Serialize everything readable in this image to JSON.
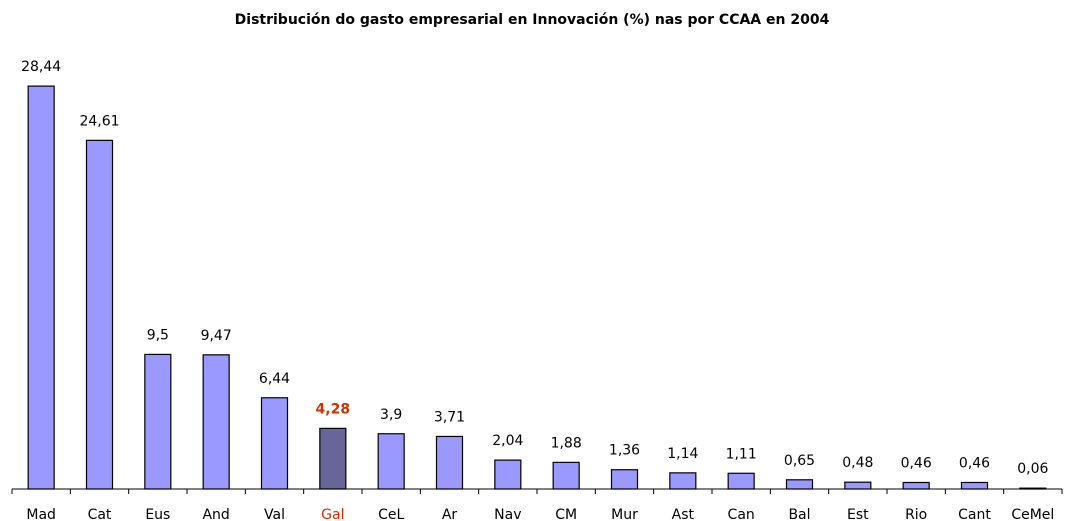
{
  "chart_data": {
    "type": "bar",
    "title": "Distribución do gasto empresarial en Innovación (%) nas por CCAA en 2004",
    "categories": [
      "Mad",
      "Cat",
      "Eus",
      "And",
      "Val",
      "Gal",
      "CeL",
      "Ar",
      "Nav",
      "CM",
      "Mur",
      "Ast",
      "Can",
      "Bal",
      "Est",
      "Rio",
      "Cant",
      "CeMel"
    ],
    "values": [
      28.44,
      24.61,
      9.5,
      9.47,
      6.44,
      4.28,
      3.9,
      3.71,
      2.04,
      1.88,
      1.36,
      1.14,
      1.11,
      0.65,
      0.48,
      0.46,
      0.46,
      0.06
    ],
    "value_labels": [
      "28,44",
      "24,61",
      "9,5",
      "9,47",
      "6,44",
      "4,28",
      "3,9",
      "3,71",
      "2,04",
      "1,88",
      "1,36",
      "1,14",
      "1,11",
      "0,65",
      "0,48",
      "0,46",
      "0,46",
      "0,06"
    ],
    "colors": [
      "#9999ff",
      "#9999ff",
      "#9999ff",
      "#9999ff",
      "#9999ff",
      "#666699",
      "#9999ff",
      "#9999ff",
      "#9999ff",
      "#9999ff",
      "#9999ff",
      "#9999ff",
      "#9999ff",
      "#9999ff",
      "#9999ff",
      "#9999ff",
      "#9999ff",
      "#9999ff"
    ],
    "label_colors": [
      "#000000",
      "#000000",
      "#000000",
      "#000000",
      "#000000",
      "#cc3300",
      "#000000",
      "#000000",
      "#000000",
      "#000000",
      "#000000",
      "#000000",
      "#000000",
      "#000000",
      "#000000",
      "#000000",
      "#000000",
      "#000000"
    ],
    "ylim": [
      0,
      30
    ]
  }
}
